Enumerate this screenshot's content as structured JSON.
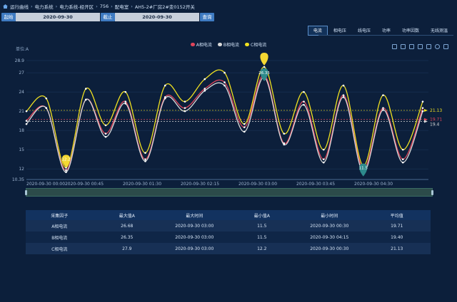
{
  "breadcrumb": [
    "运行曲线",
    "电力系统",
    "电力系统-经开区",
    "756",
    "配电室",
    "AH5-2#厂房2#变0152开关"
  ],
  "query": {
    "start_label": "起始",
    "start_value": "2020-09-30",
    "end_label": "截止",
    "end_value": "2020-09-30",
    "search_label": "查询"
  },
  "tabs": [
    "电流",
    "相电压",
    "线电压",
    "功率",
    "功率因数",
    "无线测温"
  ],
  "active_tab": 0,
  "unit_label": "单位:A",
  "legend": [
    {
      "name": "A相电流",
      "color": "#e0445a"
    },
    {
      "name": "B相电流",
      "color": "#d9d9d9"
    },
    {
      "name": "C相电流",
      "color": "#f0e020"
    }
  ],
  "tool_icons": [
    "zoom-icon",
    "zoom-reset-icon",
    "data-view-icon",
    "line-type-icon",
    "bar-type-icon",
    "refresh-icon",
    "download-icon"
  ],
  "chart_data": {
    "type": "line",
    "x_labels": [
      "2020-09-30 00:00",
      "2020-09-30 00:45",
      "2020-09-30 01:30",
      "2020-09-30 02:15",
      "2020-09-30 03:00",
      "2020-09-30 03:45",
      "2020-09-30 04:30"
    ],
    "y_ticks": [
      "10.35",
      "12",
      "15",
      "18",
      "21",
      "24",
      "27",
      "28.9"
    ],
    "ylim": [
      10.35,
      28.9
    ],
    "series": [
      {
        "name": "A相电流",
        "color": "#e0445a",
        "values": [
          19.5,
          21.5,
          11.8,
          22.8,
          17.5,
          22.5,
          13.5,
          23.2,
          21.5,
          24.5,
          25.5,
          18.5,
          26.7,
          16.0,
          22.5,
          13.5,
          23.5,
          12.0,
          21.5,
          13.5,
          21.5
        ]
      },
      {
        "name": "B相电流",
        "color": "#d9d9d9",
        "values": [
          19.0,
          21.5,
          11.5,
          22.8,
          17.0,
          22.2,
          13.2,
          23.0,
          21.0,
          24.2,
          25.0,
          17.8,
          26.3,
          15.8,
          22.0,
          13.0,
          23.2,
          11.5,
          21.2,
          13.0,
          21.0
        ]
      },
      {
        "name": "C相电流",
        "color": "#f0e020",
        "values": [
          21.0,
          23.0,
          12.2,
          24.5,
          18.8,
          24.0,
          14.5,
          25.0,
          22.5,
          26.0,
          27.0,
          19.0,
          27.9,
          17.5,
          24.0,
          15.0,
          25.0,
          12.5,
          23.5,
          15.0,
          22.5
        ]
      }
    ],
    "markers": {
      "max": [
        {
          "label": "26.35",
          "value": 26.35
        },
        {
          "label": "12.2",
          "value": 12.2
        }
      ],
      "min": [
        {
          "label": "11.5",
          "value": 11.5
        }
      ]
    },
    "averages": [
      {
        "label": "21.13",
        "value": 21.13,
        "color": "#f0e020"
      },
      {
        "label": "19.71",
        "value": 19.71,
        "color": "#e0445a"
      },
      {
        "label": "19.4",
        "value": 19.4,
        "color": "#d9d9d9"
      }
    ]
  },
  "table": {
    "headers": [
      "采集因子",
      "最大值A",
      "最大时间",
      "最小值A",
      "最小时间",
      "平均值"
    ],
    "rows": [
      [
        "A相电流",
        "26.68",
        "2020-09-30 03:00",
        "11.5",
        "2020-09-30 00:30",
        "19.71"
      ],
      [
        "B相电流",
        "26.35",
        "2020-09-30 03:00",
        "11.5",
        "2020-09-30 04:15",
        "19.40"
      ],
      [
        "C相电流",
        "27.9",
        "2020-09-30 03:00",
        "12.2",
        "2020-09-30 00:30",
        "21.13"
      ]
    ]
  }
}
